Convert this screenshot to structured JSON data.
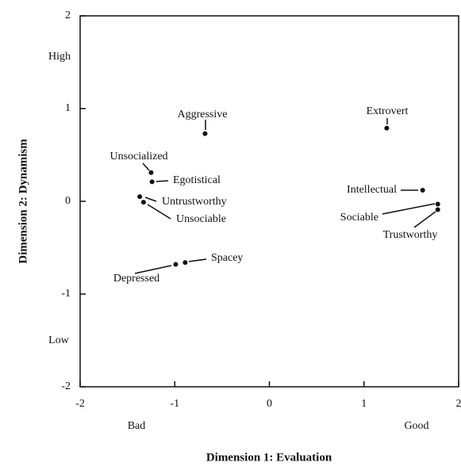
{
  "chart_data": {
    "type": "scatter",
    "x_label": "Dimension 1:  Evaluation",
    "y_label": "Dimension 2:  Dynamism",
    "point_labels": [
      "Aggressive",
      "Extrovert",
      "Unsocialized",
      "Egotistical",
      "Untrustworthy",
      "Unsociable",
      "Intellectual",
      "Sociable",
      "Trustworthy",
      "Spacey",
      "Depressed"
    ],
    "x": [
      -0.68,
      1.24,
      -1.25,
      -1.24,
      -1.37,
      -1.33,
      1.62,
      1.78,
      1.78,
      -0.89,
      -0.99
    ],
    "values": [
      0.73,
      0.79,
      0.31,
      0.21,
      0.05,
      -0.01,
      0.12,
      -0.03,
      -0.09,
      -0.66,
      -0.68
    ],
    "color": "#111111",
    "annotations": [
      "High",
      "Low",
      "Bad",
      "Good"
    ],
    "xlim": [
      -2,
      2
    ],
    "xticks": [
      -2,
      -1,
      0,
      1,
      2
    ],
    "ylim": [
      -2,
      2
    ],
    "yticks": [
      -2,
      -1,
      0,
      1,
      2
    ],
    "grid": false
  }
}
